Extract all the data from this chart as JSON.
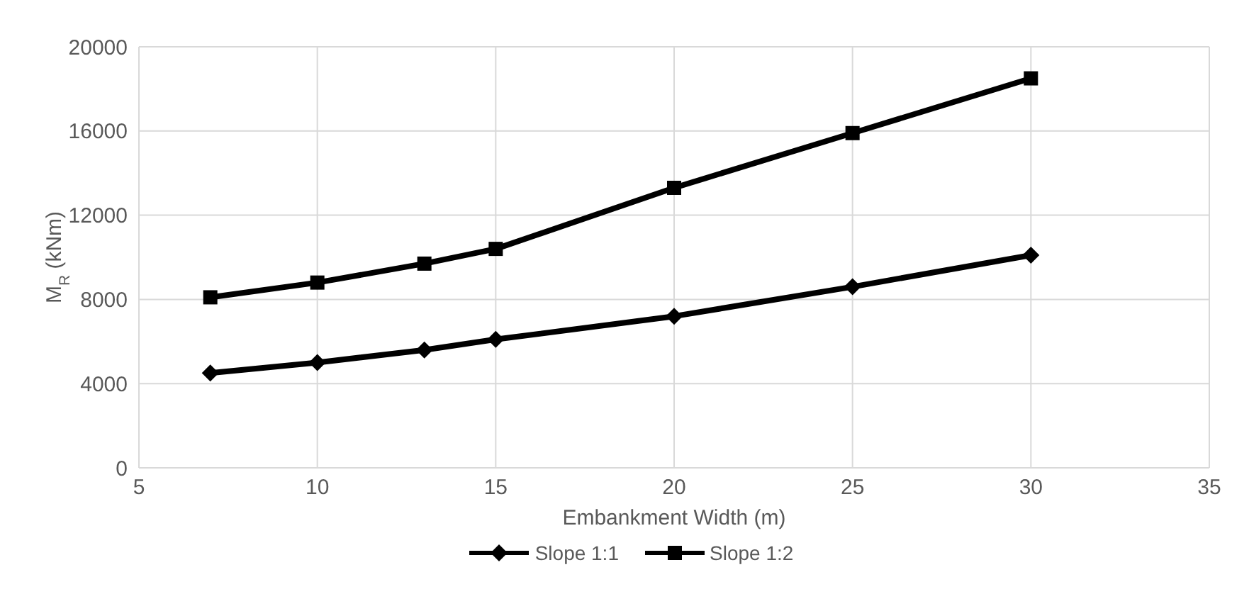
{
  "chart_data": {
    "type": "line",
    "xlabel": "Embankment Width (m)",
    "ylabel": "M$_{R}$ (kNm)",
    "x": [
      7,
      10,
      13,
      15,
      20,
      25,
      30
    ],
    "series": [
      {
        "name": "Slope 1:1",
        "color": "#000000",
        "marker": "diamond",
        "values": [
          4500,
          5000,
          5600,
          6100,
          7200,
          8600,
          10100
        ]
      },
      {
        "name": "Slope 1:2",
        "color": "#000000",
        "marker": "square",
        "values": [
          8100,
          8800,
          9700,
          10400,
          13300,
          15900,
          18500
        ]
      }
    ],
    "xlim": [
      5,
      35
    ],
    "xticks": [
      5,
      10,
      15,
      20,
      25,
      30,
      35
    ],
    "ylim": [
      0,
      20000
    ],
    "yticks": [
      0,
      4000,
      8000,
      12000,
      16000,
      20000
    ],
    "grid": true,
    "legend": "bottom",
    "line_style": "solid"
  }
}
